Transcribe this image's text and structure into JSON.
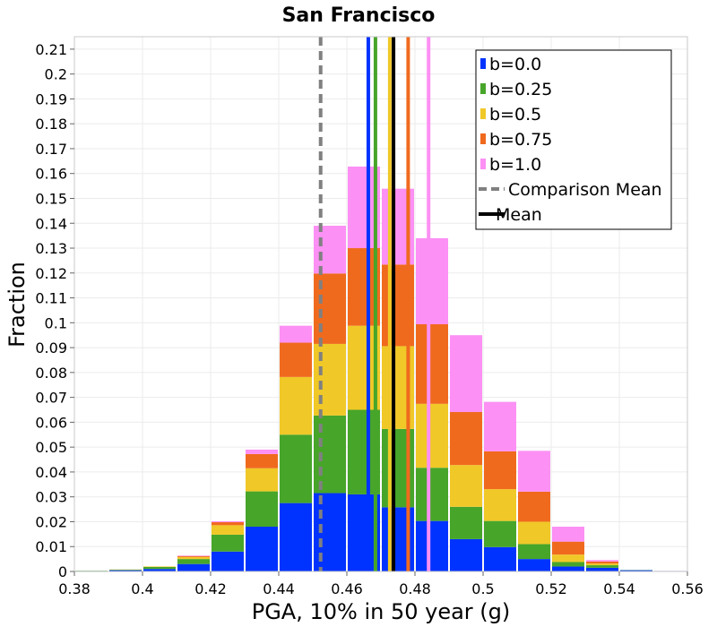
{
  "chart_data": {
    "type": "bar",
    "stacked": true,
    "title": "San Francisco",
    "xlabel": "PGA, 10% in 50 year (g)",
    "ylabel": "Fraction",
    "xlim": [
      0.38,
      0.56
    ],
    "ylim": [
      0,
      0.215
    ],
    "grid": true,
    "legend_position": "top-right",
    "x_ticks": [
      "0.38",
      "0.4",
      "0.42",
      "0.44",
      "0.46",
      "0.48",
      "0.5",
      "0.52",
      "0.54",
      "0.56"
    ],
    "y_ticks": [
      "0",
      "0.01",
      "0.02",
      "0.03",
      "0.04",
      "0.05",
      "0.06",
      "0.07",
      "0.08",
      "0.09",
      "0.1",
      "0.11",
      "0.12",
      "0.13",
      "0.14",
      "0.15",
      "0.16",
      "0.17",
      "0.18",
      "0.19",
      "0.2",
      "0.21"
    ],
    "bin_centers": [
      0.385,
      0.395,
      0.405,
      0.415,
      0.425,
      0.435,
      0.445,
      0.455,
      0.465,
      0.475,
      0.485,
      0.495,
      0.505,
      0.515,
      0.525,
      0.535,
      0.545,
      0.555
    ],
    "bin_width": 0.01,
    "series": [
      {
        "name": "b=0.0",
        "color": "#0033ff",
        "values": [
          0.0002,
          0.0005,
          0.001,
          0.003,
          0.008,
          0.018,
          0.0275,
          0.0315,
          0.031,
          0.0258,
          0.0203,
          0.013,
          0.0098,
          0.005,
          0.002,
          0.0015,
          0.0005,
          0.0002
        ]
      },
      {
        "name": "b=0.25",
        "color": "#47a52a",
        "values": [
          0.0001,
          0.0002,
          0.0008,
          0.002,
          0.0068,
          0.0142,
          0.0275,
          0.0312,
          0.034,
          0.0315,
          0.0214,
          0.013,
          0.0105,
          0.006,
          0.0018,
          0.001,
          0.0001,
          0
        ]
      },
      {
        "name": "b=0.5",
        "color": "#f0c828",
        "values": [
          0,
          0.0001,
          0.0002,
          0.0008,
          0.0038,
          0.0093,
          0.0232,
          0.0288,
          0.0338,
          0.0333,
          0.0257,
          0.0168,
          0.0128,
          0.009,
          0.003,
          0.0007,
          0,
          0
        ]
      },
      {
        "name": "b=0.75",
        "color": "#f06a1e",
        "values": [
          0,
          0,
          0,
          0.0004,
          0.0012,
          0.0057,
          0.0138,
          0.0283,
          0.0312,
          0.0328,
          0.032,
          0.0213,
          0.0152,
          0.0121,
          0.0052,
          0.0008,
          0,
          0
        ]
      },
      {
        "name": "b=1.0",
        "color": "#fc90f4",
        "values": [
          0,
          0,
          0,
          0.0002,
          0.0004,
          0.0018,
          0.0068,
          0.0192,
          0.0328,
          0.0305,
          0.0346,
          0.0309,
          0.0199,
          0.0164,
          0.006,
          0.0006,
          0,
          0
        ]
      }
    ],
    "vertical_lines": [
      {
        "name": "b=0.0 mean",
        "x": 0.4663,
        "color": "#0033ff",
        "style": "solid"
      },
      {
        "name": "b=0.25 mean",
        "x": 0.4684,
        "color": "#47a52a",
        "style": "solid"
      },
      {
        "name": "b=0.5 mean",
        "x": 0.4726,
        "color": "#f0c828",
        "style": "solid"
      },
      {
        "name": "b=0.75 mean",
        "x": 0.478,
        "color": "#f06a1e",
        "style": "solid"
      },
      {
        "name": "b=1.0 mean",
        "x": 0.484,
        "color": "#fc90f4",
        "style": "solid"
      },
      {
        "name": "Comparison Mean",
        "x": 0.4523,
        "color": "#808080",
        "style": "dashed"
      },
      {
        "name": "Mean",
        "x": 0.4737,
        "color": "#000000",
        "style": "solid"
      }
    ],
    "legend": [
      {
        "label": "b=0.0",
        "color": "#0033ff",
        "kind": "box"
      },
      {
        "label": "b=0.25",
        "color": "#47a52a",
        "kind": "box"
      },
      {
        "label": "b=0.5",
        "color": "#f0c828",
        "kind": "box"
      },
      {
        "label": "b=0.75",
        "color": "#f06a1e",
        "kind": "box"
      },
      {
        "label": "b=1.0",
        "color": "#fc90f4",
        "kind": "box"
      },
      {
        "label": "Comparison Mean",
        "color": "#808080",
        "kind": "dashed-line"
      },
      {
        "label": "Mean",
        "color": "#000000",
        "kind": "line"
      }
    ]
  }
}
